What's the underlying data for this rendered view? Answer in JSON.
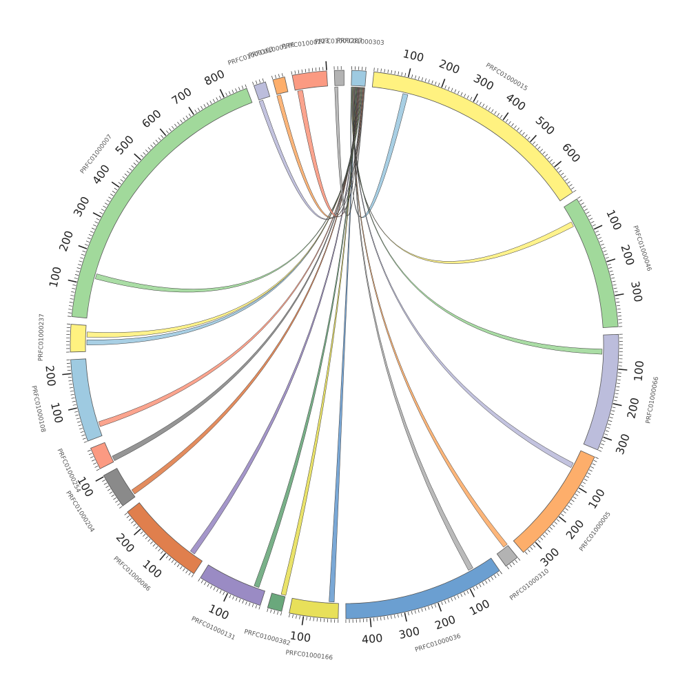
{
  "diagram": {
    "type": "chord",
    "tick_interval": 10,
    "label_interval": 100,
    "segments": [
      {
        "name": "PRFC01000303",
        "length": 42,
        "color": "#9ecae1",
        "labels": []
      },
      {
        "name": "PRFC01000015",
        "length": 690,
        "color": "#fff280",
        "labels": [
          "100",
          "200",
          "300",
          "400",
          "500",
          "600"
        ]
      },
      {
        "name": "PRFC01000046",
        "length": 390,
        "color": "#a1d99b",
        "labels": [
          "100",
          "200",
          "300"
        ]
      },
      {
        "name": "PRFC01000066",
        "length": 340,
        "color": "#bcbddc",
        "labels": [
          "100",
          "200",
          "300"
        ]
      },
      {
        "name": "PRFC01000005",
        "length": 345,
        "color": "#fdae6b",
        "labels": [
          "100",
          "200",
          "300"
        ]
      },
      {
        "name": "PRFC01000310",
        "length": 42,
        "color": "#b3b3b3",
        "labels": []
      },
      {
        "name": "PRFC01000036",
        "length": 470,
        "color": "#6b9fd1",
        "labels": [
          "100",
          "200",
          "300",
          "400"
        ]
      },
      {
        "name": "PRFC01000166",
        "length": 142,
        "color": "#e8e05a",
        "labels": [
          "100"
        ]
      },
      {
        "name": "PRFC01000382",
        "length": 42,
        "color": "#6aa87c",
        "labels": []
      },
      {
        "name": "PRFC01000131",
        "length": 190,
        "color": "#9a8bc4",
        "labels": [
          "100"
        ]
      },
      {
        "name": "PRFC01000086",
        "length": 262,
        "color": "#e07f4d",
        "labels": [
          "100",
          "200"
        ]
      },
      {
        "name": "PRFC01000204",
        "length": 103,
        "color": "#8a8a8a",
        "labels": [
          "100"
        ]
      },
      {
        "name": "PRFC01000254",
        "length": 65,
        "color": "#fb9a82",
        "labels": []
      },
      {
        "name": "PRFC01000108",
        "length": 240,
        "color": "#9ecae1",
        "labels": [
          "100",
          "200"
        ]
      },
      {
        "name": "PRFC01000237",
        "length": 80,
        "color": "#fff280",
        "labels": []
      },
      {
        "name": "PRFC01000007",
        "length": 870,
        "color": "#a1d99b",
        "labels": [
          "100",
          "200",
          "300",
          "400",
          "500",
          "600",
          "700",
          "800"
        ]
      },
      {
        "name": "PRFC01000163",
        "length": 35,
        "color": "#bcbddc",
        "labels": []
      },
      {
        "name": "PRFC01000176",
        "length": 35,
        "color": "#fdae6b",
        "labels": []
      },
      {
        "name": "PRFC01000223",
        "length": 100,
        "color": "#fb9a82",
        "labels": []
      },
      {
        "name": "PRFC01000287",
        "length": 28,
        "color": "#b3b3b3",
        "labels": []
      }
    ],
    "links": [
      {
        "from": "PRFC01000303",
        "to": "PRFC01000015",
        "color": "#9ecae1"
      },
      {
        "from": "PRFC01000303",
        "to": "PRFC01000046",
        "color": "#fff280"
      },
      {
        "from": "PRFC01000303",
        "to": "PRFC01000066",
        "color": "#a1d99b"
      },
      {
        "from": "PRFC01000303",
        "to": "PRFC01000005",
        "color": "#bcbddc"
      },
      {
        "from": "PRFC01000303",
        "to": "PRFC01000310",
        "color": "#fdae6b"
      },
      {
        "from": "PRFC01000303",
        "to": "PRFC01000036",
        "color": "#b3b3b3"
      },
      {
        "from": "PRFC01000303",
        "to": "PRFC01000166",
        "color": "#6b9fd1"
      },
      {
        "from": "PRFC01000303",
        "to": "PRFC01000382",
        "color": "#e8e05a"
      },
      {
        "from": "PRFC01000303",
        "to": "PRFC01000131",
        "color": "#6aa87c"
      },
      {
        "from": "PRFC01000303",
        "to": "PRFC01000086",
        "color": "#9a8bc4"
      },
      {
        "from": "PRFC01000303",
        "to": "PRFC01000204",
        "color": "#e07f4d"
      },
      {
        "from": "PRFC01000303",
        "to": "PRFC01000254",
        "color": "#8a8a8a"
      },
      {
        "from": "PRFC01000303",
        "to": "PRFC01000108",
        "color": "#fb9a82"
      },
      {
        "from": "PRFC01000303",
        "to": "PRFC01000237",
        "color": "#9ecae1"
      },
      {
        "from": "PRFC01000303",
        "to": "PRFC01000237",
        "color": "#fff280"
      },
      {
        "from": "PRFC01000303",
        "to": "PRFC01000007",
        "color": "#a1d99b"
      },
      {
        "from": "PRFC01000303",
        "to": "PRFC01000163",
        "color": "#bcbddc"
      },
      {
        "from": "PRFC01000303",
        "to": "PRFC01000176",
        "color": "#fdae6b"
      },
      {
        "from": "PRFC01000303",
        "to": "PRFC01000223",
        "color": "#fb9a82"
      },
      {
        "from": "PRFC01000303",
        "to": "PRFC01000287",
        "color": "#b3b3b3"
      }
    ]
  }
}
